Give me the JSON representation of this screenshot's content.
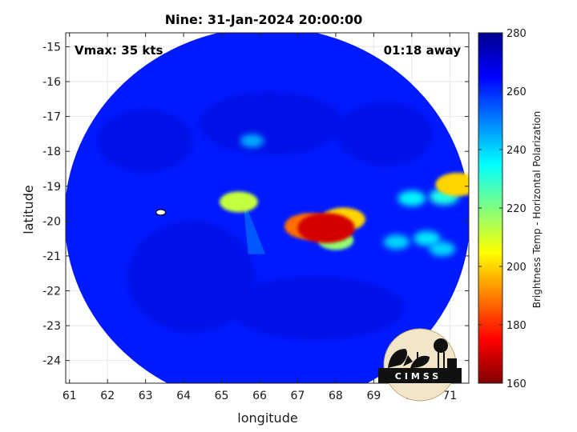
{
  "chart_data": {
    "type": "heatmap",
    "title": "Nine: 31-Jan-2024 20:00:00",
    "xlabel": "longitude",
    "ylabel": "latitude",
    "xlim": [
      60.9,
      71.5
    ],
    "ylim": [
      -24.65,
      -14.6
    ],
    "x_ticks": [
      "61",
      "62",
      "63",
      "64",
      "65",
      "66",
      "67",
      "68",
      "69",
      "70",
      "71"
    ],
    "x_tick_values": [
      61,
      62,
      63,
      64,
      65,
      66,
      67,
      68,
      69,
      70,
      71
    ],
    "y_ticks": [
      "-15",
      "-16",
      "-17",
      "-18",
      "-19",
      "-20",
      "-21",
      "-22",
      "-23",
      "-24"
    ],
    "y_tick_values": [
      -15,
      -16,
      -17,
      -18,
      -19,
      -20,
      -21,
      -22,
      -23,
      -24
    ],
    "grid": true,
    "annotations": {
      "vmax": "Vmax: 35 kts",
      "time_away": "01:18 away"
    },
    "colorbar": {
      "label": "Brightness Temp - Horizontal Polarization",
      "range": [
        160,
        280
      ],
      "ticks": [
        "280",
        "260",
        "240",
        "220",
        "200",
        "180",
        "160"
      ],
      "tick_values": [
        280,
        260,
        240,
        220,
        200,
        180,
        160
      ],
      "colormap": [
        "#7f0000",
        "#ff0000",
        "#ff8000",
        "#ffff00",
        "#80ff80",
        "#00ffff",
        "#0080ff",
        "#0000ff",
        "#00008f"
      ]
    },
    "swath": {
      "center_lon": 66.2,
      "center_lat": -19.9,
      "background_tb": 262
    },
    "features": [
      {
        "lon": 67.75,
        "lat": -20.2,
        "tb": 170
      },
      {
        "lon": 67.3,
        "lat": -20.15,
        "tb": 188
      },
      {
        "lon": 68.2,
        "lat": -19.95,
        "tb": 200
      },
      {
        "lon": 68.0,
        "lat": -20.55,
        "tb": 218
      },
      {
        "lon": 65.45,
        "lat": -19.45,
        "tb": 212
      },
      {
        "lon": 71.2,
        "lat": -18.95,
        "tb": 200
      },
      {
        "lon": 70.85,
        "lat": -19.3,
        "tb": 232
      },
      {
        "lon": 70.0,
        "lat": -19.35,
        "tb": 236
      },
      {
        "lon": 69.6,
        "lat": -20.6,
        "tb": 240
      },
      {
        "lon": 70.4,
        "lat": -20.5,
        "tb": 238
      },
      {
        "lon": 70.8,
        "lat": -20.8,
        "tb": 240
      },
      {
        "lon": 65.8,
        "lat": -17.7,
        "tb": 245
      }
    ],
    "storm_center": {
      "lon": 63.4,
      "lat": -19.75
    }
  },
  "logo": {
    "text": "CIMSS"
  }
}
